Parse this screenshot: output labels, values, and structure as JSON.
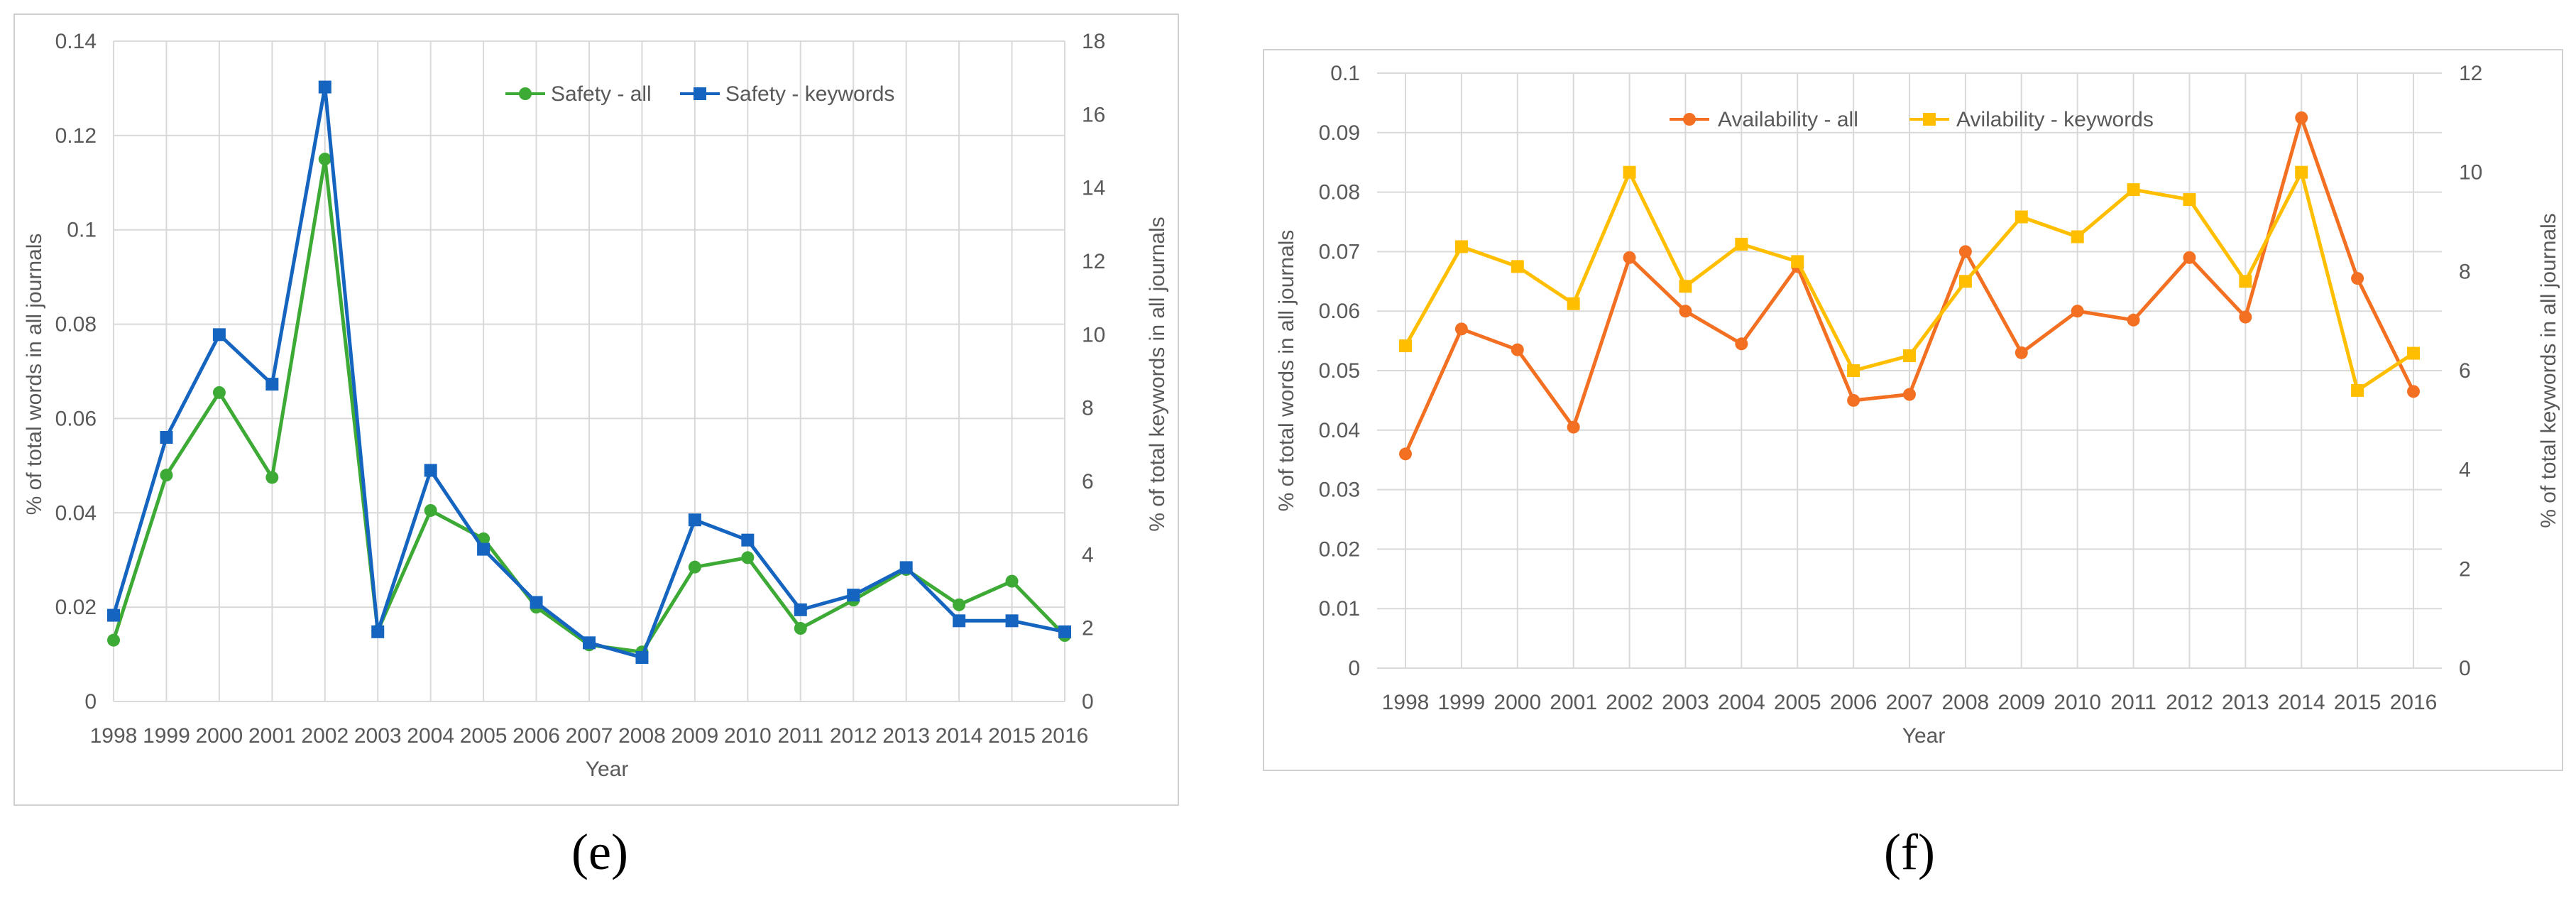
{
  "colors": {
    "safety_all": "#3eaa36",
    "safety_keywords": "#1565c0",
    "availability_all": "#f37022",
    "availability_keywords": "#ffbf00",
    "grid": "#d9d9d9",
    "axis_text": "#595959",
    "frame": "#d0d0d0"
  },
  "chart_data": [
    {
      "type": "line",
      "panel_label": "(e)",
      "xlabel": "Year",
      "ylabel": "% of total words in all journals",
      "y2label": "% of total keywords in all journals",
      "categories": [
        "1998",
        "1999",
        "2000",
        "2001",
        "2002",
        "2003",
        "2004",
        "2005",
        "2006",
        "2007",
        "2008",
        "2009",
        "2010",
        "2011",
        "2012",
        "2013",
        "2014",
        "2015",
        "2016"
      ],
      "ylim": [
        0,
        0.14
      ],
      "y_ticks": [
        "0",
        "0.02",
        "0.04",
        "0.06",
        "0.08",
        "0.1",
        "0.12",
        "0.14"
      ],
      "y2lim": [
        0,
        18
      ],
      "y2_ticks": [
        "0",
        "2",
        "4",
        "6",
        "8",
        "10",
        "12",
        "14",
        "16",
        "18"
      ],
      "series": [
        {
          "name": "Safety - all",
          "axis": "left",
          "marker": "circle",
          "color_key": "safety_all",
          "values": [
            0.013,
            0.048,
            0.0655,
            0.0475,
            0.115,
            0.015,
            0.0405,
            0.0345,
            0.02,
            0.012,
            0.0105,
            0.0285,
            0.0305,
            0.0155,
            0.0215,
            0.028,
            0.0205,
            0.0255,
            0.014
          ]
        },
        {
          "name": "Safety - keywords",
          "axis": "right",
          "marker": "square",
          "color_key": "safety_keywords",
          "values": [
            2.35,
            7.2,
            10.0,
            8.65,
            16.75,
            1.9,
            6.3,
            4.15,
            2.7,
            1.6,
            1.2,
            4.95,
            4.4,
            2.5,
            2.9,
            3.65,
            2.2,
            2.2,
            1.9
          ]
        }
      ]
    },
    {
      "type": "line",
      "panel_label": "(f)",
      "xlabel": "Year",
      "ylabel": "% of total words in all journals",
      "y2label": "% of total keywords in all journals",
      "categories": [
        "1998",
        "1999",
        "2000",
        "2001",
        "2002",
        "2003",
        "2004",
        "2005",
        "2006",
        "2007",
        "2008",
        "2009",
        "2010",
        "2011",
        "2012",
        "2013",
        "2014",
        "2015",
        "2016"
      ],
      "ylim": [
        0,
        0.1
      ],
      "y_ticks": [
        "0",
        "0.01",
        "0.02",
        "0.03",
        "0.04",
        "0.05",
        "0.06",
        "0.07",
        "0.08",
        "0.09",
        "0.1"
      ],
      "y2lim": [
        0,
        12
      ],
      "y2_ticks": [
        "0",
        "2",
        "4",
        "6",
        "8",
        "10",
        "12"
      ],
      "series": [
        {
          "name": "Availability - all",
          "axis": "left",
          "marker": "circle",
          "color_key": "availability_all",
          "values": [
            0.036,
            0.057,
            0.0535,
            0.0405,
            0.069,
            0.06,
            0.0545,
            0.0675,
            0.045,
            0.046,
            0.07,
            0.053,
            0.06,
            0.0585,
            0.069,
            0.059,
            0.0925,
            0.0655,
            0.0465
          ]
        },
        {
          "name": "Avilability - keywords",
          "axis": "right",
          "marker": "square",
          "color_key": "availability_keywords",
          "values": [
            6.5,
            8.5,
            8.1,
            7.35,
            10.0,
            7.7,
            8.55,
            8.2,
            6.0,
            6.3,
            7.8,
            9.1,
            8.7,
            9.65,
            9.45,
            7.8,
            10.0,
            5.6,
            6.35
          ]
        }
      ]
    }
  ]
}
